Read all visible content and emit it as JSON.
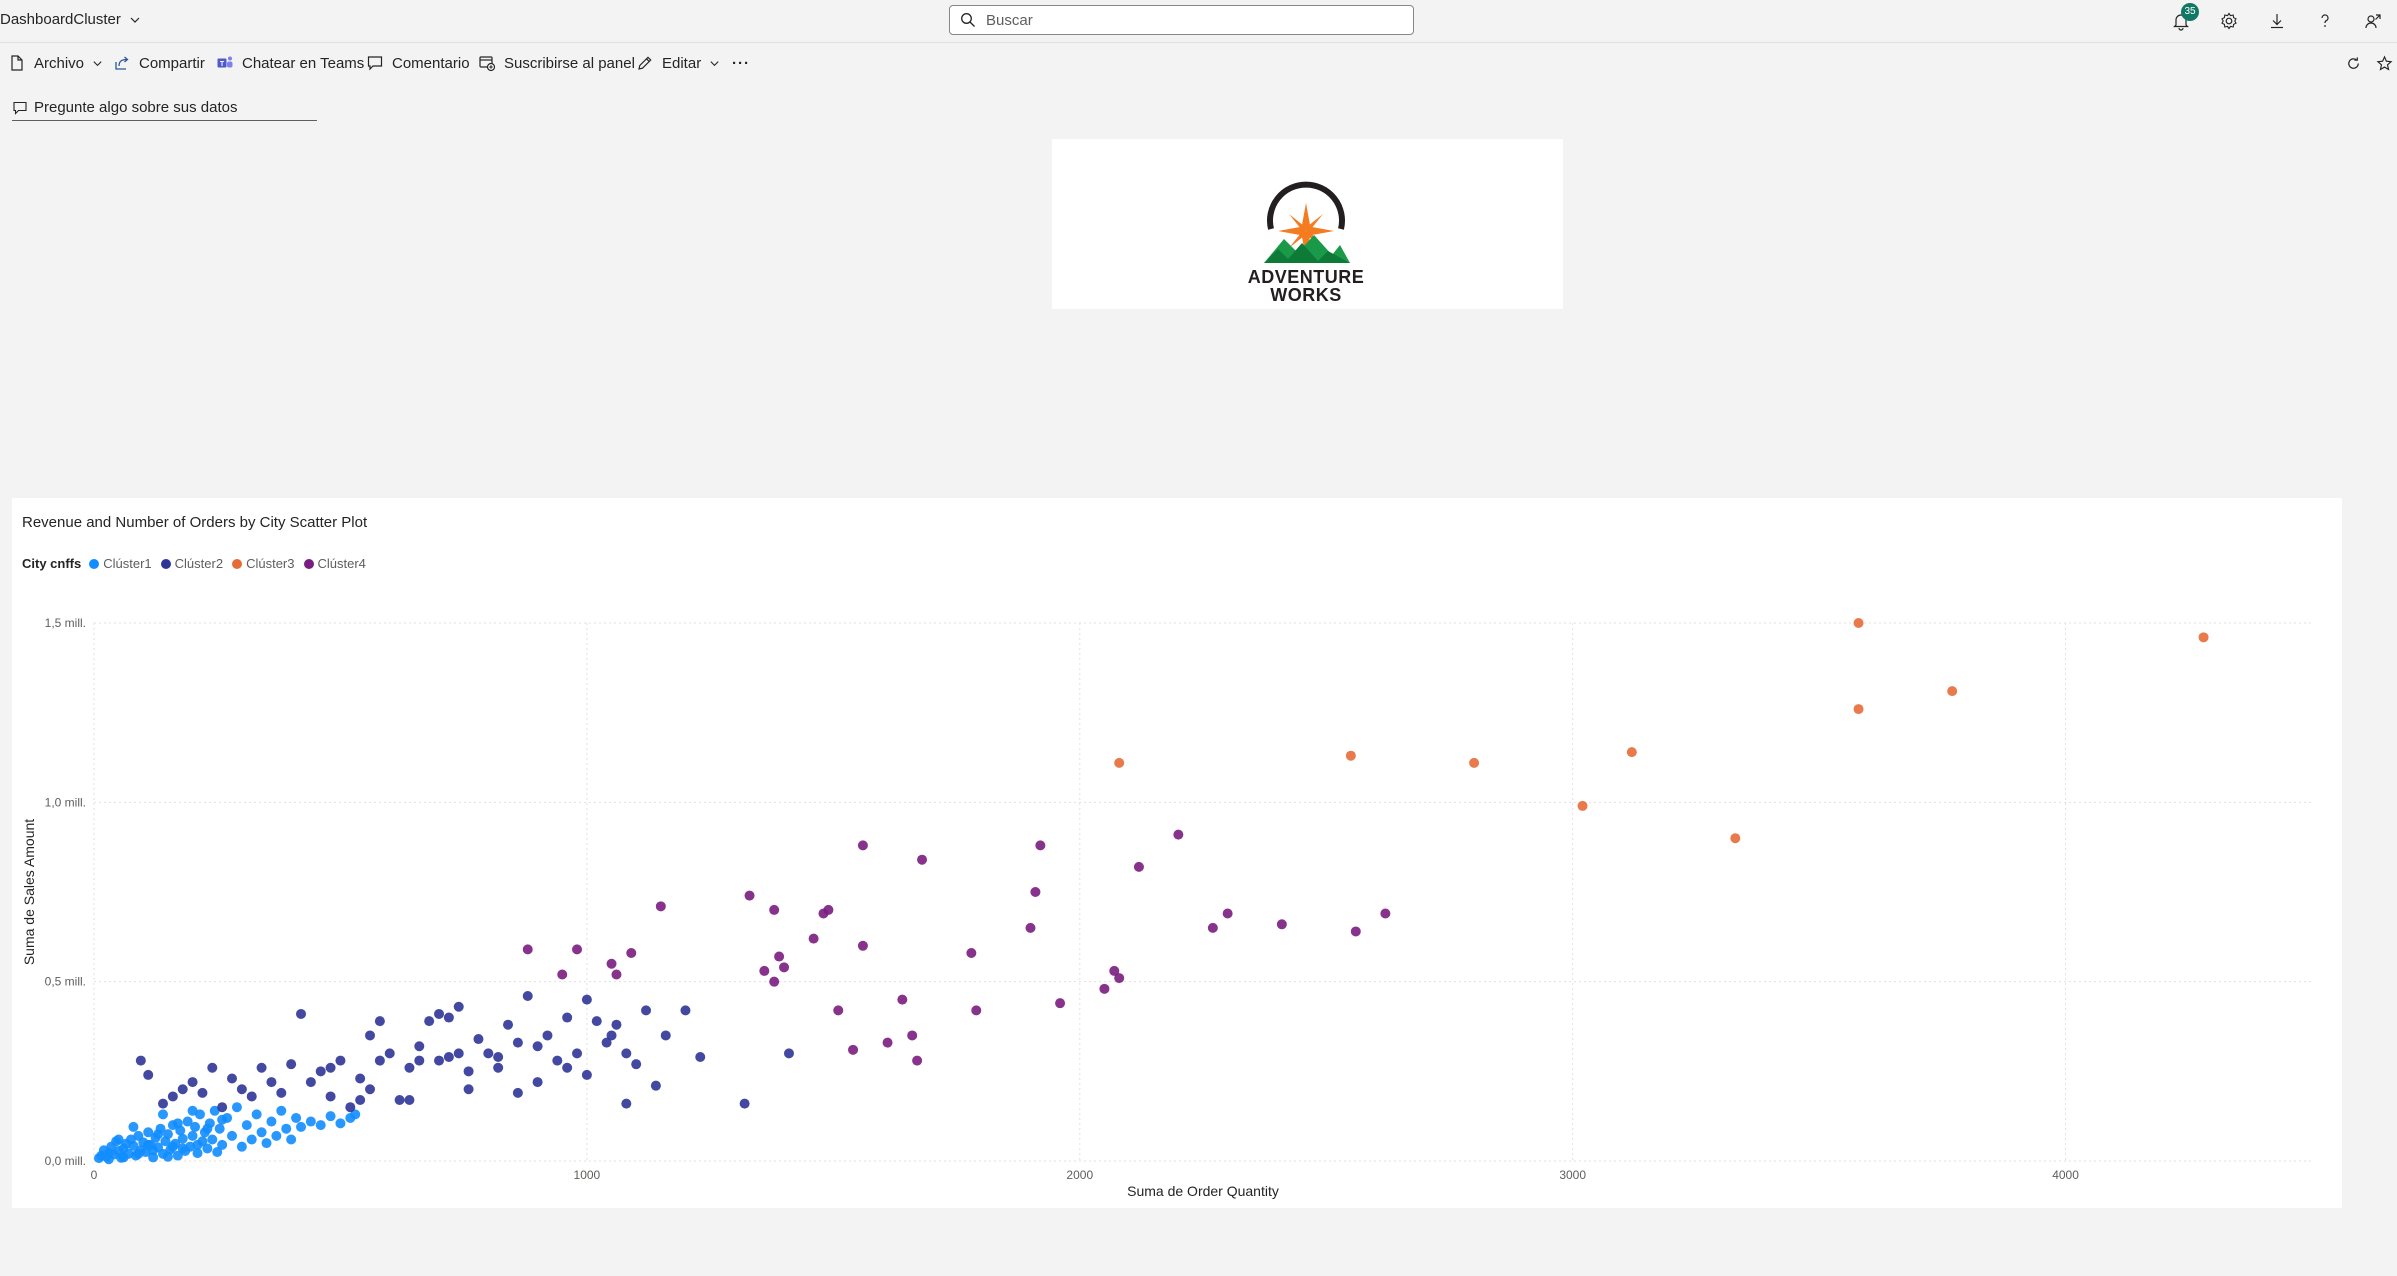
{
  "app": {
    "title": "DashboardCluster"
  },
  "search": {
    "placeholder": "Buscar"
  },
  "notifications": {
    "count": "35"
  },
  "toolbar": {
    "archivo": "Archivo",
    "compartir": "Compartir",
    "teams": "Chatear en Teams",
    "comentario": "Comentario",
    "suscribirse": "Suscribirse al panel",
    "editar": "Editar",
    "more": "···"
  },
  "qa": {
    "label": "Pregunte algo sobre sus datos"
  },
  "logo": {
    "line1": "ADVENTURE",
    "line2": "WORKS"
  },
  "colors": {
    "cluster1": "#118DFF",
    "cluster2": "#2F3597",
    "cluster3": "#E66C37",
    "cluster4": "#7A1D80"
  },
  "chart_data": {
    "type": "scatter",
    "title": "Revenue and Number of Orders by City Scatter Plot",
    "legend_title": "City cnffs",
    "xlabel": "Suma de Order Quantity",
    "ylabel": "Suma de Sales Amount",
    "xlim": [
      0,
      4500
    ],
    "ylim": [
      0,
      1500000
    ],
    "x_ticks": [
      0,
      1000,
      2000,
      3000,
      4000
    ],
    "x_tick_labels": [
      "0",
      "1000",
      "2000",
      "3000",
      "4000"
    ],
    "y_ticks": [
      0,
      500000,
      1000000,
      1500000
    ],
    "y_tick_labels": [
      "0,0 mill.",
      "0,5 mill.",
      "1,0 mill.",
      "1,5 mill."
    ],
    "grid": true,
    "legend_position": "top-left",
    "series": [
      {
        "name": "Clúster1",
        "color": "#118DFF",
        "points": [
          [
            10,
            8000
          ],
          [
            15,
            15000
          ],
          [
            20,
            30000
          ],
          [
            25,
            12000
          ],
          [
            30,
            22000
          ],
          [
            35,
            40000
          ],
          [
            40,
            18000
          ],
          [
            45,
            55000
          ],
          [
            50,
            28000
          ],
          [
            55,
            9000
          ],
          [
            60,
            35000
          ],
          [
            65,
            48000
          ],
          [
            70,
            20000
          ],
          [
            75,
            60000
          ],
          [
            80,
            42000
          ],
          [
            85,
            15000
          ],
          [
            90,
            70000
          ],
          [
            95,
            30000
          ],
          [
            100,
            52000
          ],
          [
            105,
            25000
          ],
          [
            110,
            80000
          ],
          [
            115,
            45000
          ],
          [
            120,
            10000
          ],
          [
            125,
            65000
          ],
          [
            130,
            38000
          ],
          [
            135,
            90000
          ],
          [
            140,
            20000
          ],
          [
            145,
            55000
          ],
          [
            150,
            75000
          ],
          [
            155,
            32000
          ],
          [
            160,
            100000
          ],
          [
            165,
            48000
          ],
          [
            170,
            15000
          ],
          [
            175,
            85000
          ],
          [
            180,
            62000
          ],
          [
            185,
            28000
          ],
          [
            190,
            110000
          ],
          [
            195,
            40000
          ],
          [
            200,
            70000
          ],
          [
            205,
            95000
          ],
          [
            210,
            22000
          ],
          [
            215,
            130000
          ],
          [
            220,
            55000
          ],
          [
            225,
            80000
          ],
          [
            230,
            35000
          ],
          [
            235,
            105000
          ],
          [
            240,
            60000
          ],
          [
            245,
            140000
          ],
          [
            250,
            25000
          ],
          [
            255,
            90000
          ],
          [
            260,
            45000
          ],
          [
            270,
            120000
          ],
          [
            280,
            70000
          ],
          [
            290,
            150000
          ],
          [
            300,
            40000
          ],
          [
            310,
            100000
          ],
          [
            320,
            60000
          ],
          [
            330,
            130000
          ],
          [
            340,
            80000
          ],
          [
            350,
            50000
          ],
          [
            360,
            110000
          ],
          [
            370,
            70000
          ],
          [
            380,
            140000
          ],
          [
            390,
            90000
          ],
          [
            400,
            60000
          ],
          [
            410,
            120000
          ],
          [
            420,
            95000
          ],
          [
            440,
            110000
          ],
          [
            460,
            100000
          ],
          [
            480,
            125000
          ],
          [
            500,
            105000
          ],
          [
            520,
            120000
          ],
          [
            530,
            130000
          ],
          [
            30,
            5000
          ],
          [
            60,
            10000
          ],
          [
            90,
            20000
          ],
          [
            120,
            30000
          ],
          [
            150,
            12000
          ],
          [
            180,
            35000
          ],
          [
            210,
            45000
          ],
          [
            50,
            60000
          ],
          [
            80,
            95000
          ],
          [
            110,
            45000
          ],
          [
            140,
            130000
          ],
          [
            170,
            105000
          ],
          [
            200,
            140000
          ],
          [
            230,
            90000
          ],
          [
            260,
            115000
          ],
          [
            130,
            75000
          ],
          [
            160,
            40000
          ]
        ]
      },
      {
        "name": "Clúster2",
        "color": "#2F3597",
        "points": [
          [
            95,
            280000
          ],
          [
            110,
            240000
          ],
          [
            140,
            160000
          ],
          [
            160,
            180000
          ],
          [
            180,
            200000
          ],
          [
            200,
            220000
          ],
          [
            220,
            190000
          ],
          [
            240,
            260000
          ],
          [
            260,
            150000
          ],
          [
            280,
            230000
          ],
          [
            300,
            200000
          ],
          [
            320,
            180000
          ],
          [
            340,
            260000
          ],
          [
            360,
            220000
          ],
          [
            380,
            190000
          ],
          [
            400,
            270000
          ],
          [
            420,
            410000
          ],
          [
            440,
            220000
          ],
          [
            460,
            250000
          ],
          [
            480,
            260000
          ],
          [
            500,
            280000
          ],
          [
            520,
            150000
          ],
          [
            540,
            230000
          ],
          [
            560,
            350000
          ],
          [
            580,
            280000
          ],
          [
            600,
            300000
          ],
          [
            620,
            170000
          ],
          [
            640,
            260000
          ],
          [
            660,
            320000
          ],
          [
            680,
            390000
          ],
          [
            700,
            280000
          ],
          [
            720,
            400000
          ],
          [
            740,
            300000
          ],
          [
            760,
            250000
          ],
          [
            780,
            340000
          ],
          [
            800,
            300000
          ],
          [
            820,
            290000
          ],
          [
            840,
            380000
          ],
          [
            860,
            330000
          ],
          [
            880,
            460000
          ],
          [
            900,
            220000
          ],
          [
            920,
            350000
          ],
          [
            940,
            280000
          ],
          [
            960,
            400000
          ],
          [
            980,
            300000
          ],
          [
            1000,
            450000
          ],
          [
            1020,
            390000
          ],
          [
            1040,
            330000
          ],
          [
            1060,
            380000
          ],
          [
            1080,
            300000
          ],
          [
            1100,
            270000
          ],
          [
            1120,
            420000
          ],
          [
            1140,
            210000
          ],
          [
            1160,
            350000
          ],
          [
            1200,
            420000
          ],
          [
            1230,
            290000
          ],
          [
            1320,
            160000
          ],
          [
            1410,
            300000
          ],
          [
            580,
            390000
          ],
          [
            700,
            410000
          ],
          [
            540,
            170000
          ],
          [
            760,
            200000
          ],
          [
            860,
            190000
          ],
          [
            960,
            260000
          ],
          [
            1000,
            240000
          ],
          [
            1050,
            350000
          ],
          [
            1080,
            160000
          ],
          [
            480,
            180000
          ],
          [
            560,
            200000
          ],
          [
            660,
            280000
          ],
          [
            740,
            430000
          ],
          [
            820,
            260000
          ],
          [
            900,
            320000
          ],
          [
            640,
            170000
          ],
          [
            720,
            290000
          ]
        ]
      },
      {
        "name": "Clúster3",
        "color": "#E66C37",
        "points": [
          [
            2080,
            1110000
          ],
          [
            2550,
            1130000
          ],
          [
            2800,
            1110000
          ],
          [
            3020,
            990000
          ],
          [
            3120,
            1140000
          ],
          [
            3330,
            900000
          ],
          [
            3580,
            1500000
          ],
          [
            3580,
            1260000
          ],
          [
            3770,
            1310000
          ],
          [
            4280,
            1460000
          ]
        ]
      },
      {
        "name": "Clúster4",
        "color": "#7A1D80",
        "points": [
          [
            880,
            590000
          ],
          [
            950,
            520000
          ],
          [
            980,
            590000
          ],
          [
            1050,
            550000
          ],
          [
            1060,
            520000
          ],
          [
            1090,
            580000
          ],
          [
            1150,
            710000
          ],
          [
            1330,
            740000
          ],
          [
            1360,
            530000
          ],
          [
            1380,
            700000
          ],
          [
            1380,
            500000
          ],
          [
            1390,
            570000
          ],
          [
            1400,
            540000
          ],
          [
            1460,
            620000
          ],
          [
            1480,
            690000
          ],
          [
            1490,
            700000
          ],
          [
            1510,
            420000
          ],
          [
            1540,
            310000
          ],
          [
            1560,
            880000
          ],
          [
            1560,
            600000
          ],
          [
            1610,
            330000
          ],
          [
            1640,
            450000
          ],
          [
            1660,
            350000
          ],
          [
            1670,
            280000
          ],
          [
            1680,
            840000
          ],
          [
            1780,
            580000
          ],
          [
            1790,
            420000
          ],
          [
            1900,
            650000
          ],
          [
            1910,
            750000
          ],
          [
            1920,
            880000
          ],
          [
            1960,
            440000
          ],
          [
            2050,
            480000
          ],
          [
            2070,
            530000
          ],
          [
            2080,
            510000
          ],
          [
            2120,
            820000
          ],
          [
            2200,
            910000
          ],
          [
            2270,
            650000
          ],
          [
            2300,
            690000
          ],
          [
            2410,
            660000
          ],
          [
            2560,
            640000
          ],
          [
            2620,
            690000
          ]
        ]
      }
    ]
  }
}
